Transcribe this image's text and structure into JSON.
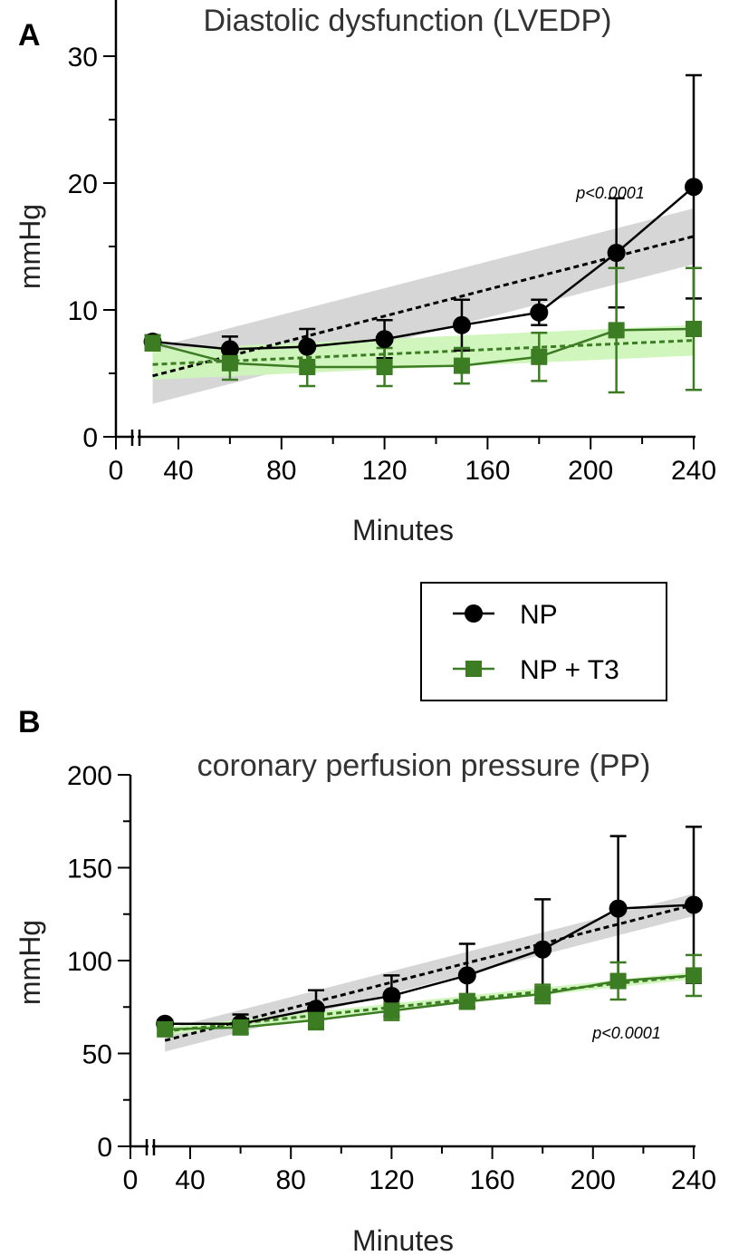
{
  "chart_data": [
    {
      "panel": "A",
      "type": "line",
      "title": "Diastolic dysfunction (LVEDP)",
      "xlabel": "Minutes",
      "ylabel": "mmHg",
      "xlim": [
        0,
        240
      ],
      "ylim": [
        0,
        35
      ],
      "x_ticks": [
        0,
        40,
        80,
        120,
        160,
        200,
        240
      ],
      "y_ticks": [
        0,
        10,
        20,
        30
      ],
      "x_axis_break": true,
      "annotation": "p<0.0001",
      "series": [
        {
          "name": "NP",
          "color": "#000000",
          "marker": "circle",
          "x": [
            30,
            60,
            90,
            120,
            150,
            180,
            210,
            240
          ],
          "y": [
            7.5,
            6.9,
            7.1,
            7.7,
            8.8,
            9.8,
            14.5,
            19.7
          ],
          "err": [
            0.5,
            1.0,
            1.4,
            1.5,
            2.0,
            1.0,
            4.3,
            8.8
          ],
          "fit": {
            "x": [
              30,
              240
            ],
            "y": [
              4.8,
              15.8
            ],
            "band_half": [
              2.2,
              2.2
            ]
          }
        },
        {
          "name": "NP + T3",
          "color": "#3c7d23",
          "marker": "square",
          "x": [
            30,
            60,
            90,
            120,
            150,
            180,
            210,
            240
          ],
          "y": [
            7.4,
            5.8,
            5.5,
            5.5,
            5.6,
            6.3,
            8.4,
            8.5
          ],
          "err": [
            0.6,
            1.3,
            1.5,
            1.5,
            1.4,
            1.9,
            4.9,
            4.8
          ],
          "fit": {
            "x": [
              30,
              240
            ],
            "y": [
              5.7,
              7.6
            ],
            "band_half": [
              1.2,
              1.2
            ]
          }
        }
      ]
    },
    {
      "panel": "B",
      "type": "line",
      "title": "coronary perfusion pressure (PP)",
      "xlabel": "Minutes",
      "ylabel": "mmHg",
      "xlim": [
        0,
        240
      ],
      "ylim": [
        0,
        200
      ],
      "x_ticks": [
        0,
        40,
        80,
        120,
        160,
        200,
        240
      ],
      "y_ticks": [
        0,
        50,
        100,
        150,
        200
      ],
      "x_axis_break": true,
      "annotation": "p<0.0001",
      "series": [
        {
          "name": "NP",
          "color": "#000000",
          "marker": "circle",
          "x": [
            30,
            60,
            90,
            120,
            150,
            180,
            210,
            240
          ],
          "y": [
            66,
            66,
            74,
            81,
            92,
            106,
            128,
            130
          ],
          "err": [
            2,
            5,
            10,
            11,
            17,
            27,
            39,
            42
          ],
          "fit": {
            "x": [
              30,
              240
            ],
            "y": [
              57,
              130
            ],
            "band_half": [
              6,
              6
            ]
          }
        },
        {
          "name": "NP + T3",
          "color": "#3c7d23",
          "marker": "square",
          "x": [
            30,
            60,
            90,
            120,
            150,
            180,
            210,
            240
          ],
          "y": [
            63,
            64,
            68,
            73,
            78,
            82,
            89,
            92
          ],
          "err": [
            2,
            3,
            5,
            5,
            4,
            5,
            10,
            11
          ],
          "fit": {
            "x": [
              30,
              240
            ],
            "y": [
              62,
              92
            ],
            "band_half": [
              2,
              2
            ]
          }
        }
      ]
    }
  ],
  "legend": {
    "items": [
      {
        "label": "NP",
        "color": "#000000",
        "marker": "circle"
      },
      {
        "label": "NP + T3",
        "color": "#3c7d23",
        "marker": "square"
      }
    ]
  },
  "colors": {
    "np_band": "#d4d4d4",
    "t3_band": "#cdf5b9"
  }
}
